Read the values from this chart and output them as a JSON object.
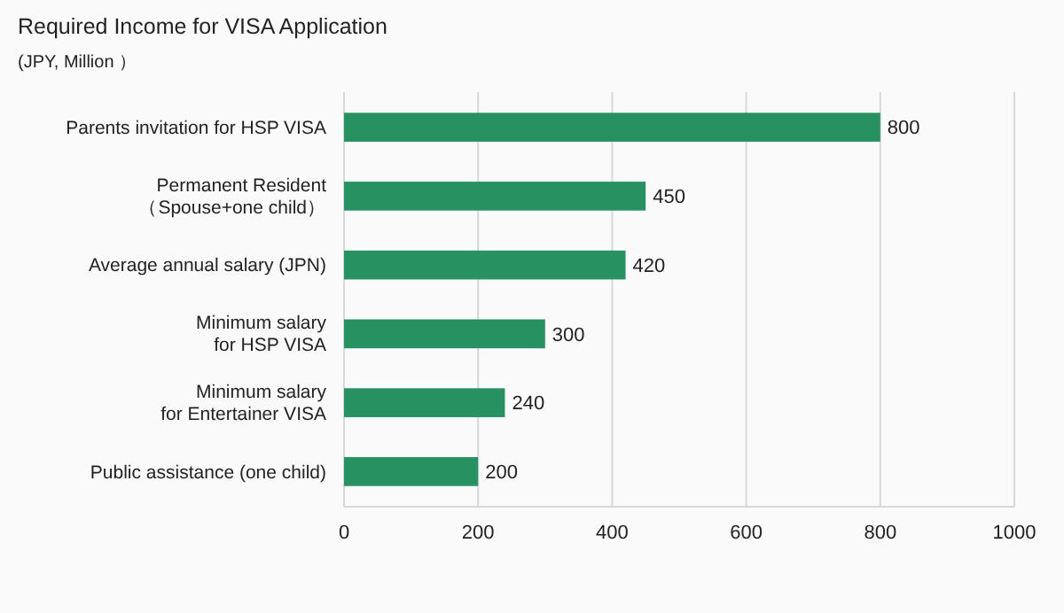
{
  "chart_data": {
    "type": "bar",
    "orientation": "horizontal",
    "title": "Required Income for VISA Application",
    "subtitle": "(JPY, Million ）",
    "categories": [
      "Parents invitation for HSP VISA",
      "Permanent Resident\n（Spouse+one child）",
      "Average annual salary (JPN)",
      "Minimum salary\nfor HSP VISA",
      "Minimum salary\nfor Entertainer VISA",
      "Public assistance (one child)"
    ],
    "values": [
      800,
      450,
      420,
      300,
      240,
      200
    ],
    "color": "#279162",
    "data_labels": true,
    "xlim": [
      0,
      1000
    ],
    "xticks": [
      0,
      200,
      400,
      600,
      800,
      1000
    ],
    "grid": "x"
  }
}
